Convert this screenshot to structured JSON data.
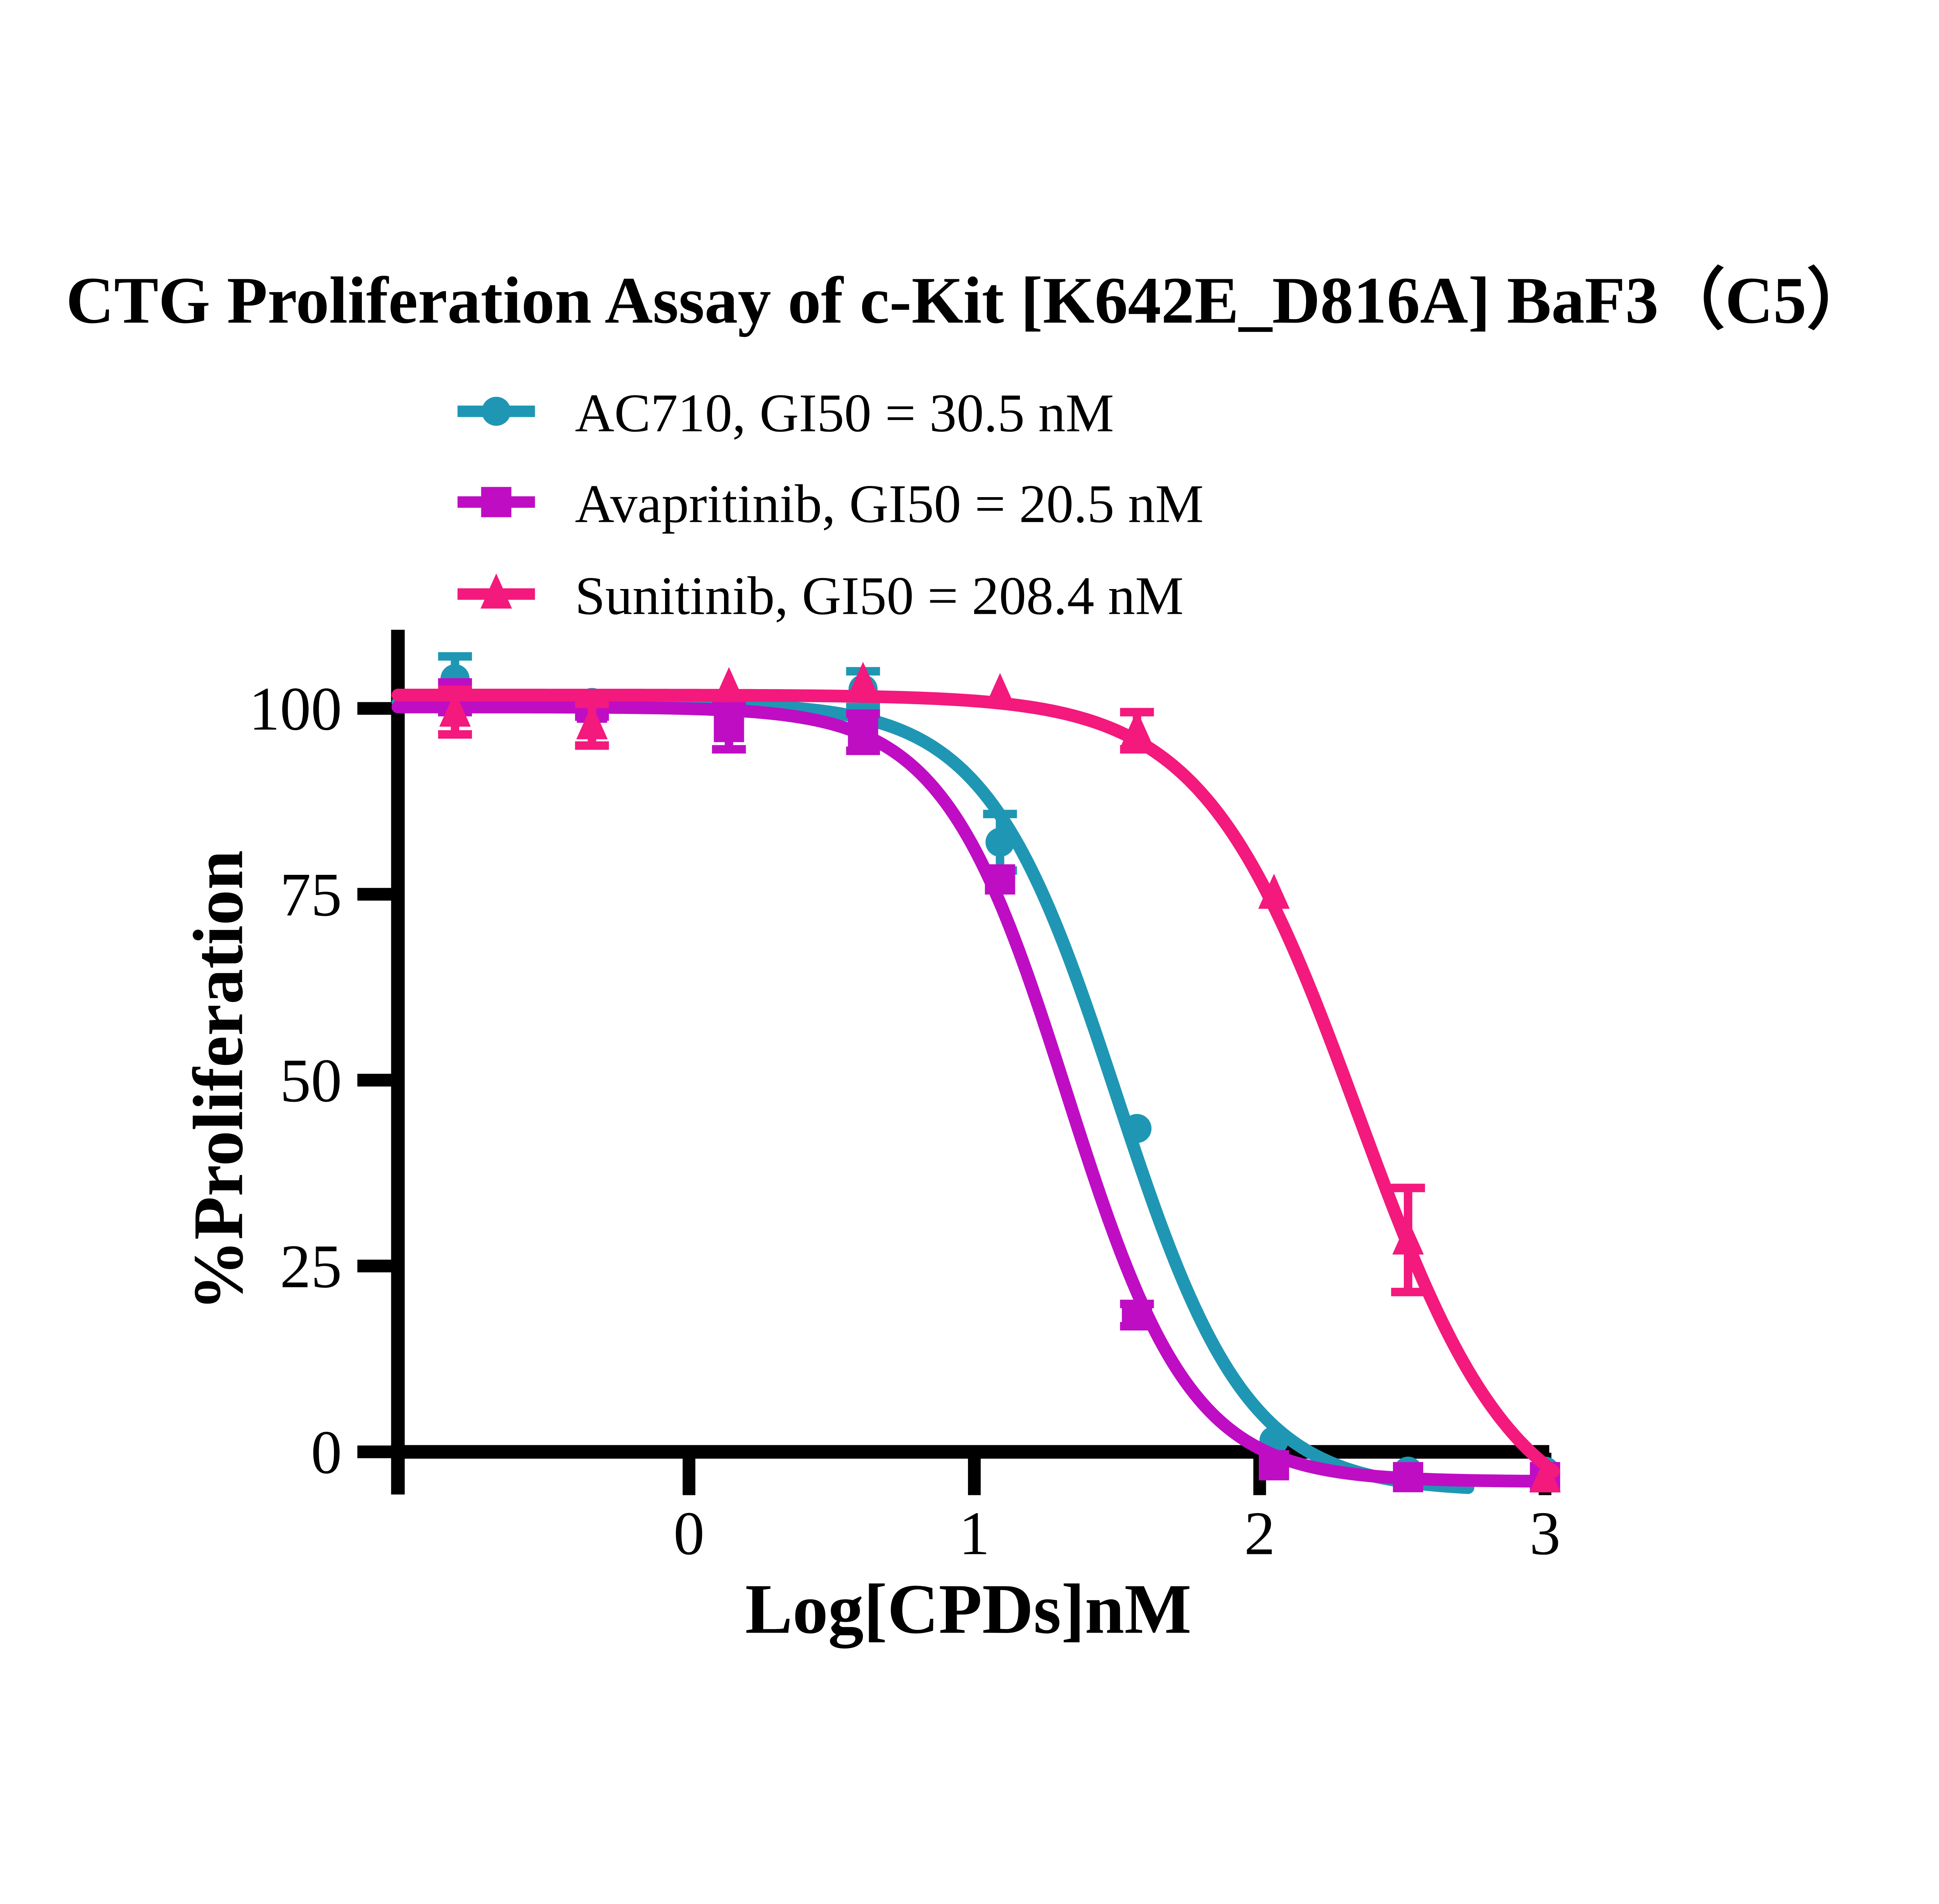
{
  "title": "CTG Proliferation Assay of c-Kit [K642E_D816A] BaF3（C5）",
  "legend": {
    "items": [
      {
        "name": "AC710",
        "label": "AC710, GI50 = 30.5 nM",
        "marker": "circle",
        "color": "#1F97B4"
      },
      {
        "name": "Avapritinib",
        "label": "Avapritinib, GI50 = 20.5 nM",
        "marker": "square",
        "color": "#BF0DC4"
      },
      {
        "name": "Sunitinib",
        "label": "Sunitinib, GI50 = 208.4 nM",
        "marker": "triangle",
        "color": "#F3197D"
      }
    ]
  },
  "chart_data": {
    "type": "scatter",
    "title": "CTG Proliferation Assay of c-Kit [K642E_D816A] BaF3（C5）",
    "xlabel": "Log[CPDs]nM",
    "ylabel": "%Proliferation",
    "x_ticks": [
      0,
      1,
      2,
      3
    ],
    "y_ticks": [
      0,
      25,
      50,
      75,
      100
    ],
    "xlim": [
      -1.02,
      3.01
    ],
    "ylim": [
      -5.5,
      110
    ],
    "grid": false,
    "legend_position": "top-left",
    "x": [
      -0.82,
      -0.34,
      0.14,
      0.61,
      1.09,
      1.57,
      2.05,
      2.52,
      3.0
    ],
    "series": [
      {
        "name": "AC710",
        "gi50_label": "GI50 = 30.5 nM",
        "gi50_nM": 30.5,
        "color": "#1F97B4",
        "marker": "circle",
        "y": [
          104.0,
          100.8,
          100.6,
          102.6,
          82.0,
          43.5,
          1.5,
          -2.6,
          -2.6
        ],
        "err": [
          3.0,
          0,
          0,
          2.4,
          3.8,
          0,
          0,
          0,
          0
        ],
        "curve": {
          "top": 100.8,
          "bottom": -5.3,
          "logec50": 1.5,
          "hill": 1.9,
          "xstart": -1.02,
          "xend": 2.73
        }
      },
      {
        "name": "Avapritinib",
        "gi50_label": "GI50 = 20.5 nM",
        "gi50_nM": 20.5,
        "color": "#BF0DC4",
        "marker": "square",
        "y": [
          101.5,
          100.1,
          97.5,
          96.8,
          77.0,
          18.4,
          -1.8,
          -3.4,
          -3.4
        ],
        "err": [
          2.0,
          1.2,
          3.0,
          2.5,
          0,
          1.5,
          0,
          0,
          0
        ],
        "curve": {
          "top": 100.2,
          "bottom": -4.0,
          "logec50": 1.325,
          "hill": 2.0,
          "xstart": -1.02,
          "xend": 3.03
        }
      },
      {
        "name": "Sunitinib",
        "gi50_label": "GI50 = 208.4 nM",
        "gi50_nM": 208.4,
        "color": "#F3197D",
        "marker": "triangle",
        "y": [
          99.5,
          97.8,
          102.8,
          103.5,
          102.0,
          97.0,
          75.0,
          28.5,
          -3.5
        ],
        "err": [
          3.0,
          2.8,
          0,
          0,
          0,
          2.5,
          0,
          7.0,
          0
        ],
        "curve": {
          "top": 101.8,
          "bottom": -11.0,
          "logec50": 2.345,
          "hill": 1.6,
          "xstart": -1.02,
          "xend": 3.03
        }
      }
    ]
  }
}
